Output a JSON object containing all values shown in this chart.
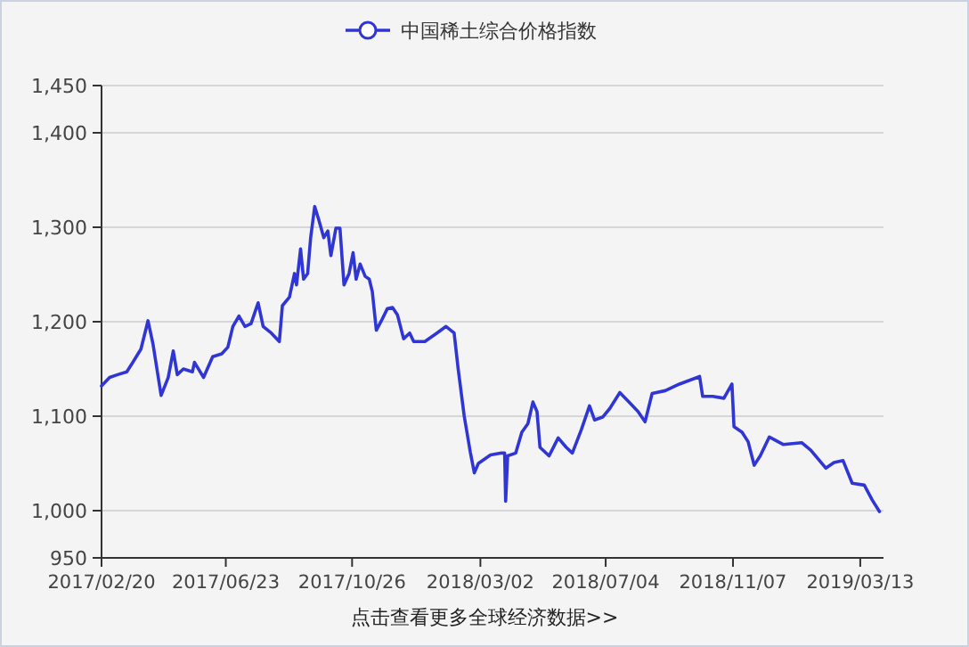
{
  "chart_data": {
    "type": "line",
    "legend": "top",
    "grid": "y",
    "marker": "none",
    "line_style": "solid",
    "annotations": [
      "点击查看更多全球经济数据>>"
    ],
    "xlim": [
      "2017-02-20",
      "2019-04-05"
    ],
    "xticks": [
      {
        "value": "2017-02-20",
        "label": "2017/02/20"
      },
      {
        "value": "2017-06-23",
        "label": "2017/06/23"
      },
      {
        "value": "2017-10-26",
        "label": "2017/10/26"
      },
      {
        "value": "2018-03-02",
        "label": "2018/03/02"
      },
      {
        "value": "2018-07-04",
        "label": "2018/07/04"
      },
      {
        "value": "2018-11-07",
        "label": "2018/11/07"
      },
      {
        "value": "2019-03-13",
        "label": "2019/03/13"
      }
    ],
    "ylim": [
      950,
      1450
    ],
    "yticks": [
      950,
      {
        "value": 1000,
        "label": "1,000"
      },
      {
        "value": 1100,
        "label": "1,100"
      },
      {
        "value": 1200,
        "label": "1,200"
      },
      {
        "value": 1300,
        "label": "1,300"
      },
      {
        "value": 1400,
        "label": "1,400"
      },
      {
        "value": 1450,
        "label": "1,450"
      }
    ],
    "series": [
      {
        "name": "中国稀土综合价格指数",
        "color": "#3036d4",
        "x": [
          "2017-02-20",
          "2017-02-28",
          "2017-03-08",
          "2017-03-17",
          "2017-03-23",
          "2017-03-31",
          "2017-04-07",
          "2017-04-12",
          "2017-04-20",
          "2017-04-27",
          "2017-05-02",
          "2017-05-06",
          "2017-05-12",
          "2017-05-21",
          "2017-05-23",
          "2017-06-01",
          "2017-06-10",
          "2017-06-19",
          "2017-06-25",
          "2017-06-30",
          "2017-07-06",
          "2017-07-12",
          "2017-07-18",
          "2017-07-25",
          "2017-07-30",
          "2017-08-07",
          "2017-08-15",
          "2017-08-18",
          "2017-08-25",
          "2017-08-30",
          "2017-09-01",
          "2017-09-05",
          "2017-09-08",
          "2017-09-12",
          "2017-09-15",
          "2017-09-19",
          "2017-09-23",
          "2017-09-28",
          "2017-10-02",
          "2017-10-05",
          "2017-10-10",
          "2017-10-14",
          "2017-10-18",
          "2017-10-23",
          "2017-10-27",
          "2017-10-30",
          "2017-11-03",
          "2017-11-08",
          "2017-11-12",
          "2017-11-15",
          "2017-11-19",
          "2017-11-24",
          "2017-11-30",
          "2017-12-05",
          "2017-12-10",
          "2017-12-16",
          "2017-12-22",
          "2017-12-26",
          "2018-01-06",
          "2018-01-18",
          "2018-01-27",
          "2018-02-04",
          "2018-02-08",
          "2018-02-14",
          "2018-02-20",
          "2018-02-24",
          "2018-02-28",
          "2018-03-12",
          "2018-03-23",
          "2018-03-26",
          "2018-03-27",
          "2018-03-29",
          "2018-04-06",
          "2018-04-12",
          "2018-04-18",
          "2018-04-23",
          "2018-04-27",
          "2018-04-30",
          "2018-05-09",
          "2018-05-18",
          "2018-05-26",
          "2018-06-01",
          "2018-06-10",
          "2018-06-18",
          "2018-06-23",
          "2018-07-01",
          "2018-07-08",
          "2018-07-18",
          "2018-07-27",
          "2018-08-05",
          "2018-08-12",
          "2018-08-19",
          "2018-09-01",
          "2018-09-15",
          "2018-10-05",
          "2018-10-08",
          "2018-10-18",
          "2018-10-29",
          "2018-11-06",
          "2018-11-08",
          "2018-11-16",
          "2018-11-22",
          "2018-11-28",
          "2018-12-04",
          "2018-12-13",
          "2018-12-27",
          "2019-01-14",
          "2019-01-23",
          "2019-02-07",
          "2019-02-15",
          "2019-02-24",
          "2019-03-05",
          "2019-03-17",
          "2019-03-25",
          "2019-04-01"
        ],
        "values": [
          1132,
          1141,
          1144,
          1147,
          1157,
          1171,
          1201,
          1176,
          1122,
          1141,
          1169,
          1144,
          1150,
          1147,
          1157,
          1141,
          1163,
          1166,
          1173,
          1195,
          1206,
          1195,
          1198,
          1220,
          1195,
          1188,
          1179,
          1217,
          1226,
          1251,
          1239,
          1277,
          1245,
          1251,
          1289,
          1322,
          1308,
          1289,
          1296,
          1270,
          1299,
          1299,
          1239,
          1251,
          1273,
          1245,
          1261,
          1248,
          1245,
          1232,
          1191,
          1201,
          1214,
          1215,
          1207,
          1182,
          1188,
          1179,
          1179,
          1188,
          1195,
          1188,
          1150,
          1100,
          1062,
          1040,
          1050,
          1059,
          1061,
          1061,
          1010,
          1058,
          1061,
          1083,
          1092,
          1115,
          1105,
          1067,
          1058,
          1077,
          1067,
          1061,
          1086,
          1111,
          1096,
          1099,
          1108,
          1125,
          1115,
          1105,
          1094,
          1124,
          1127,
          1134,
          1142,
          1121,
          1121,
          1119,
          1134,
          1089,
          1083,
          1073,
          1048,
          1058,
          1078,
          1070,
          1072,
          1064,
          1045,
          1051,
          1053,
          1029,
          1027,
          1011,
          999
        ]
      }
    ]
  }
}
